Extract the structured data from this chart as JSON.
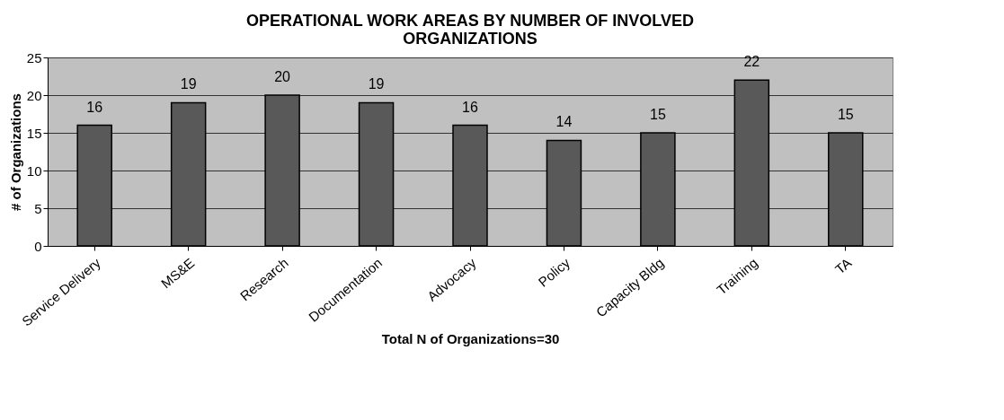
{
  "chart_data": {
    "type": "bar",
    "title": [
      "OPERATIONAL WORK AREAS BY NUMBER OF INVOLVED",
      "ORGANIZATIONS"
    ],
    "xlabel": "Total N of Organizations=30",
    "ylabel": "# of Organizations",
    "categories": [
      "Service Delivery",
      "MS&E",
      "Research",
      "Documentation",
      "Advocacy",
      "Policy",
      "Capacity Bldg",
      "Training",
      "TA"
    ],
    "values": [
      16,
      19,
      20,
      19,
      16,
      14,
      15,
      22,
      15
    ],
    "color": "#595959",
    "ylim": [
      0,
      25
    ],
    "yticks": [
      0,
      5,
      10,
      15,
      20,
      25
    ],
    "grid": "y",
    "data_labels": true
  }
}
